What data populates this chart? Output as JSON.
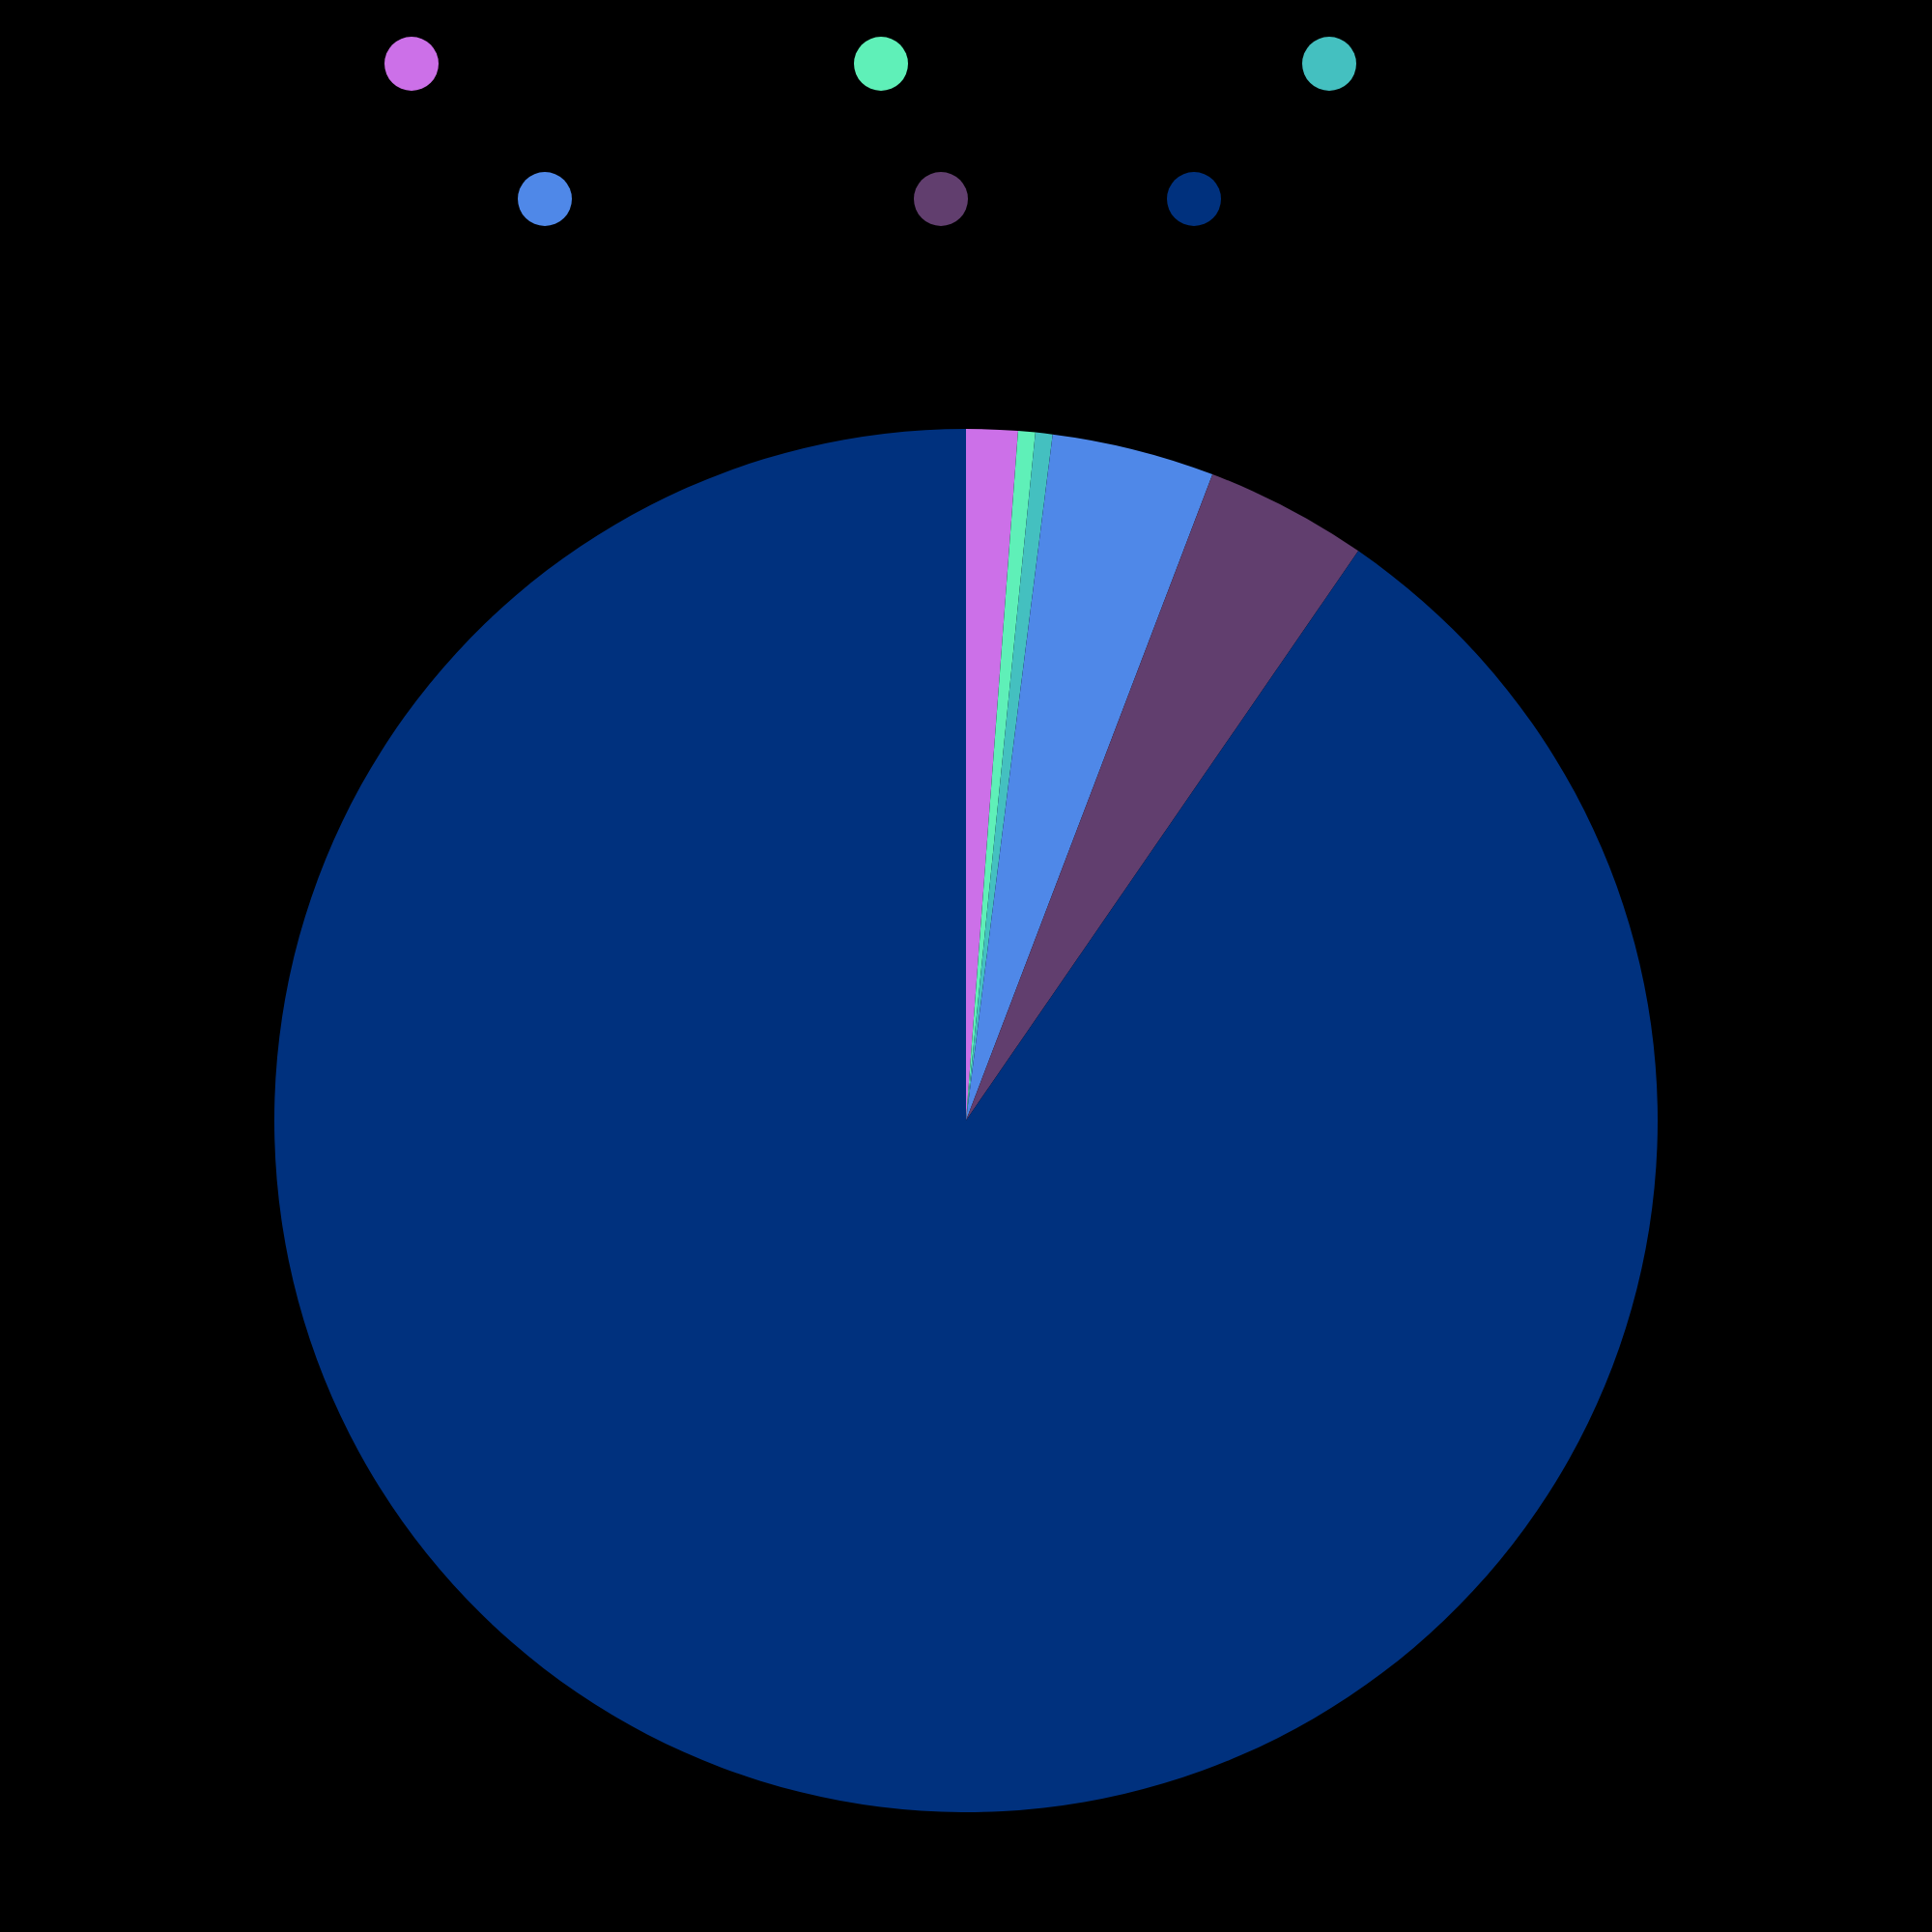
{
  "chart_data": {
    "type": "pie",
    "categories": [
      null,
      null,
      null,
      null,
      null,
      null
    ],
    "values": [
      1.2,
      0.4,
      0.4,
      3.8,
      3.8,
      90.4
    ],
    "colors": [
      "#cc70e8",
      "#5ff0b8",
      "#44c0c0",
      "#4f88e8",
      "#613e6e",
      "#00317e"
    ]
  }
}
